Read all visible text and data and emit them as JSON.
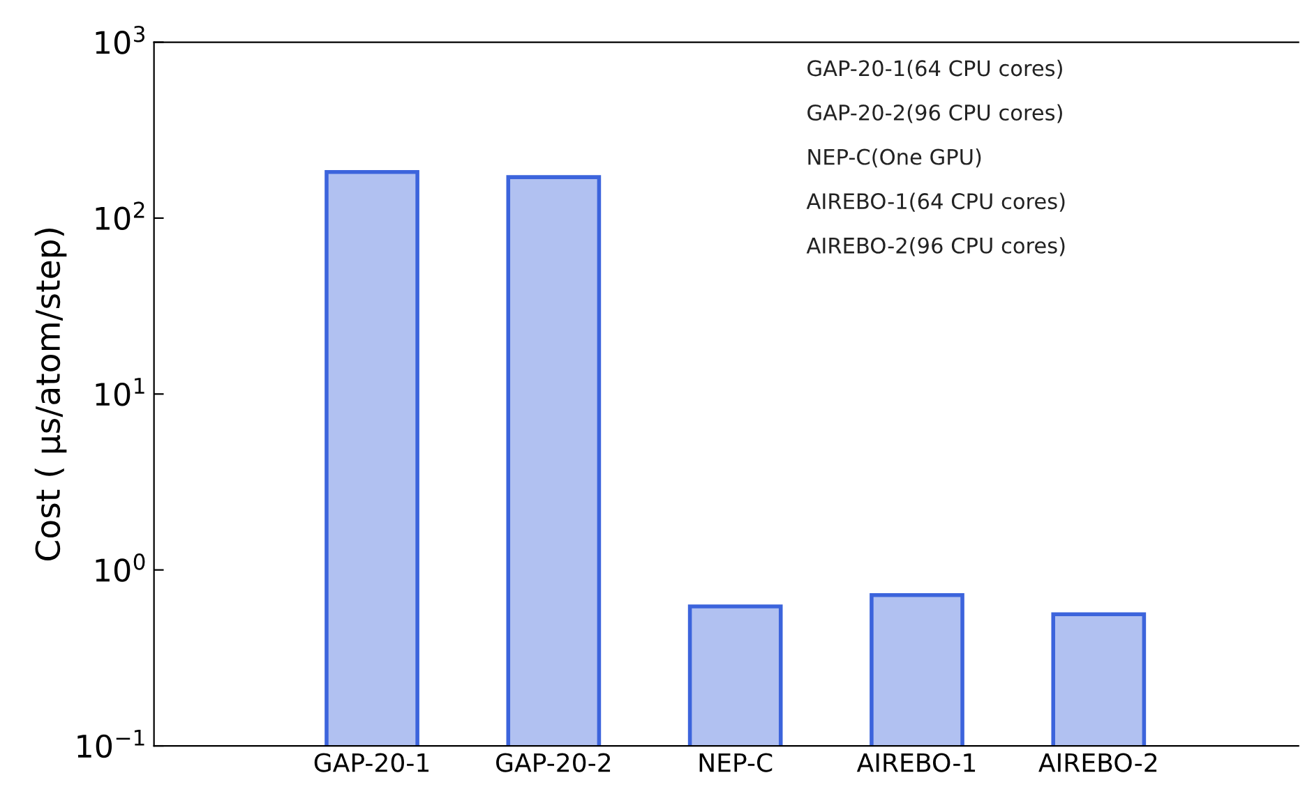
{
  "chart_data": {
    "type": "bar",
    "ylabel": "Cost ( μs/atom/step)",
    "categories": [
      "GAP-20-1",
      "GAP-20-2",
      "NEP-C",
      "AIREBO-1",
      "AIREBO-2"
    ],
    "values": [
      183,
      171,
      0.62,
      0.72,
      0.56
    ],
    "color": "#3c64dc",
    "log": "y",
    "ylim": [
      0.1,
      1000
    ],
    "yticks": [
      {
        "value": 0.1,
        "label": "10$^{−1}$"
      },
      {
        "value": 1,
        "label": "10$^{0}$"
      },
      {
        "value": 10,
        "label": "10$^{1}$"
      },
      {
        "value": 100,
        "label": "10$^{2}$"
      },
      {
        "value": 1000,
        "label": "10$^{3}$"
      }
    ],
    "grid": false,
    "annotations": [
      "GAP-20-1(64 CPU cores)",
      "GAP-20-2(96 CPU cores)",
      "NEP-C(One GPU)",
      "AIREBO-1(64 CPU cores)",
      "AIREBO-2(96 CPU cores)"
    ]
  }
}
